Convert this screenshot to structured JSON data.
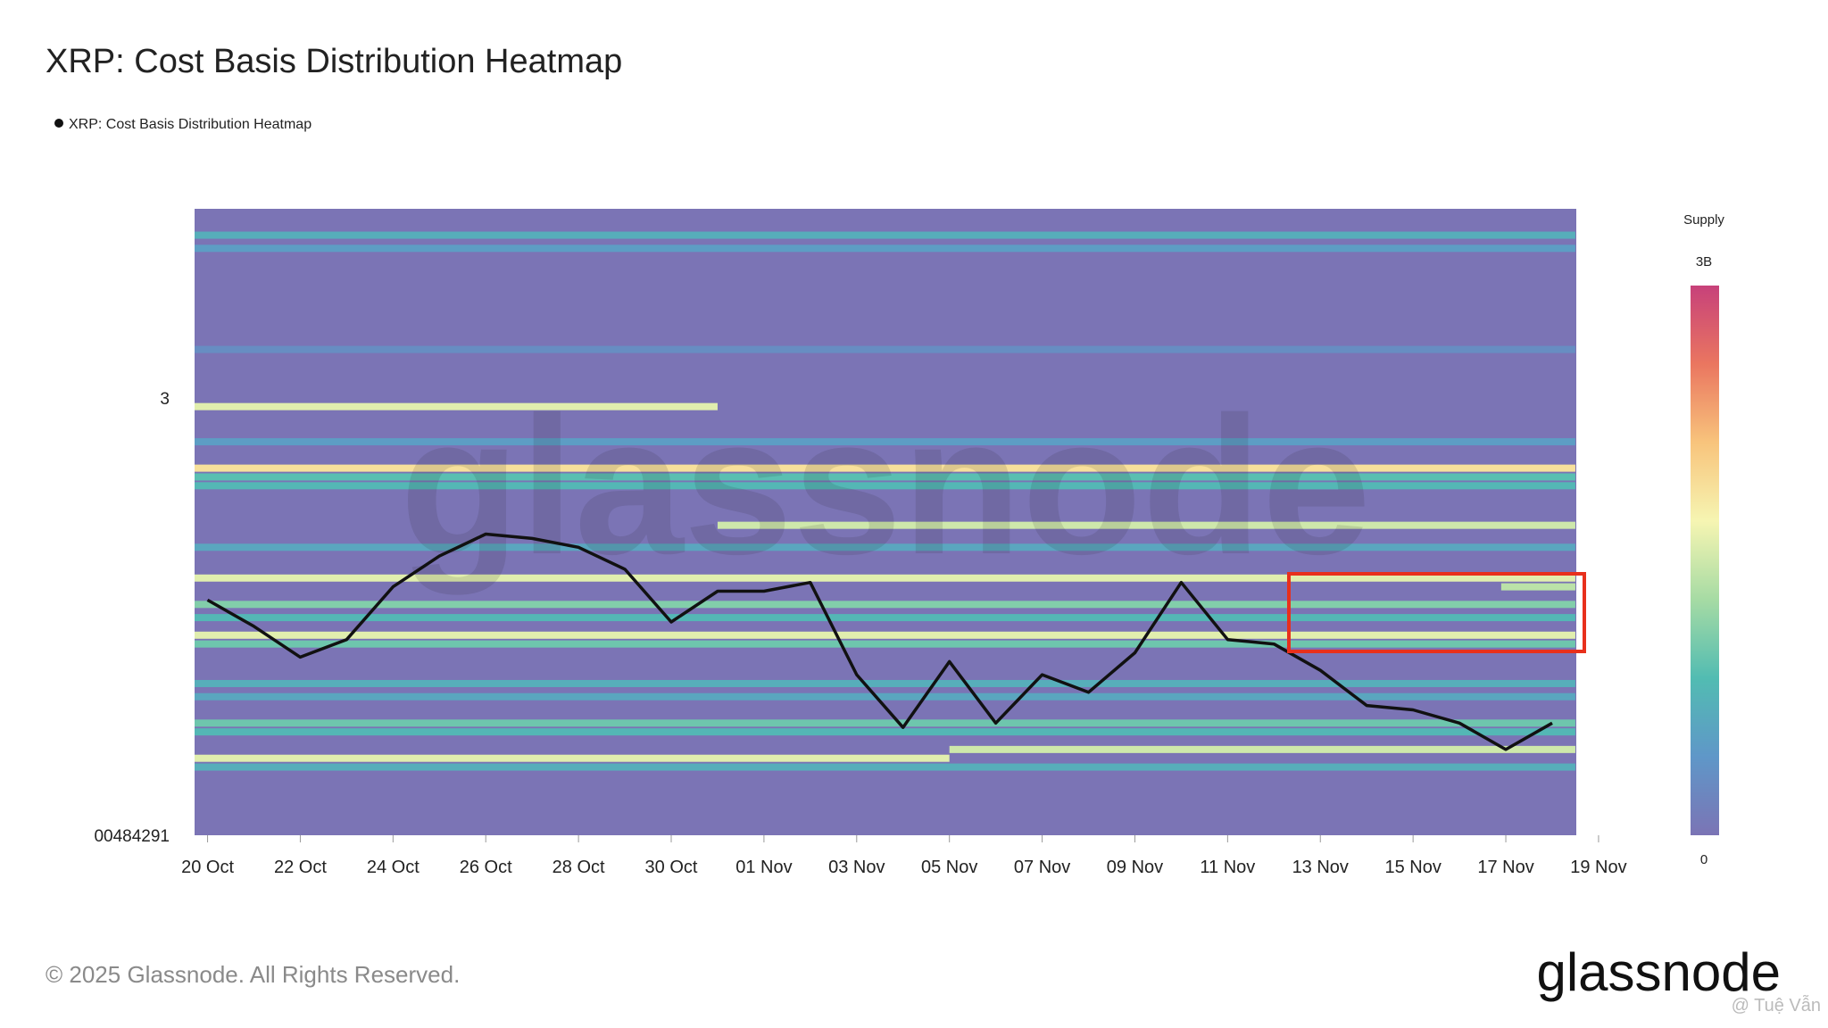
{
  "chart_data": {
    "type": "heatmap-line",
    "title": "XRP: Cost Basis Distribution Heatmap",
    "categories": [
      "20 Oct",
      null,
      "22 Oct",
      null,
      "24 Oct",
      null,
      "26 Oct",
      null,
      "28 Oct",
      null,
      "30 Oct",
      null,
      "01 Nov",
      null,
      "03 Nov",
      null,
      "05 Nov",
      null,
      "07 Nov",
      null,
      "09 Nov",
      null,
      "11 Nov",
      null,
      "13 Nov",
      null,
      "15 Nov",
      null,
      "17 Nov",
      null,
      "19 Nov"
    ],
    "series": [
      {
        "name": "XRP: Cost Basis Distribution Heatmap",
        "color": "#111111",
        "values": [
          2.54,
          2.48,
          2.41,
          2.45,
          2.57,
          2.64,
          2.69,
          2.68,
          2.66,
          2.61,
          2.49,
          2.56,
          2.56,
          2.58,
          2.37,
          2.25,
          2.4,
          2.26,
          2.37,
          2.33,
          2.42,
          2.58,
          2.45,
          2.44,
          2.38,
          2.3,
          2.29,
          2.26,
          2.2,
          2.26,
          null
        ]
      }
    ],
    "ylim": [
      2.00484291,
      3.43
    ],
    "yticks": [
      {
        "value": 2.00484291,
        "label": "00484291"
      },
      3
    ],
    "heatmap": {
      "colorbar_title": "Supply",
      "zlim": [
        0,
        3000000000
      ],
      "zticks": [
        0,
        {
          "value": 3000000000,
          "label": "3B"
        }
      ],
      "colorscale": [
        "#7b74b5",
        "#5f97c8",
        "#52bcb2",
        "#a6dba4",
        "#f6f5b2",
        "#f8c47c",
        "#ea7660",
        "#c7417a"
      ],
      "bands": [
        {
          "price": 3.37,
          "supply": 700000000,
          "span": [
            0,
            30
          ]
        },
        {
          "price": 3.34,
          "supply": 500000000,
          "span": [
            0,
            30
          ]
        },
        {
          "price": 3.11,
          "supply": 300000000,
          "span": [
            0,
            30
          ]
        },
        {
          "price": 2.98,
          "supply": 1600000000,
          "span": [
            0,
            11.5
          ]
        },
        {
          "price": 2.9,
          "supply": 500000000,
          "span": [
            0,
            30
          ]
        },
        {
          "price": 2.84,
          "supply": 1900000000,
          "span": [
            0,
            30
          ]
        },
        {
          "price": 2.82,
          "supply": 900000000,
          "span": [
            0,
            30
          ]
        },
        {
          "price": 2.8,
          "supply": 800000000,
          "span": [
            0,
            30
          ]
        },
        {
          "price": 2.71,
          "supply": 1500000000,
          "span": [
            11.5,
            30
          ]
        },
        {
          "price": 2.66,
          "supply": 600000000,
          "span": [
            0,
            30
          ]
        },
        {
          "price": 2.59,
          "supply": 1600000000,
          "span": [
            0,
            30
          ]
        },
        {
          "price": 2.57,
          "supply": 1400000000,
          "span": [
            28.4,
            30
          ]
        },
        {
          "price": 2.53,
          "supply": 1100000000,
          "span": [
            0,
            30
          ]
        },
        {
          "price": 2.5,
          "supply": 800000000,
          "span": [
            0,
            30
          ]
        },
        {
          "price": 2.46,
          "supply": 1600000000,
          "span": [
            0,
            30
          ]
        },
        {
          "price": 2.44,
          "supply": 1000000000,
          "span": [
            0,
            30
          ]
        },
        {
          "price": 2.35,
          "supply": 700000000,
          "span": [
            0,
            30
          ]
        },
        {
          "price": 2.32,
          "supply": 600000000,
          "span": [
            0,
            30
          ]
        },
        {
          "price": 2.26,
          "supply": 1000000000,
          "span": [
            0,
            30
          ]
        },
        {
          "price": 2.24,
          "supply": 800000000,
          "span": [
            0,
            30
          ]
        },
        {
          "price": 2.2,
          "supply": 1500000000,
          "span": [
            16.5,
            30
          ]
        },
        {
          "price": 2.18,
          "supply": 1600000000,
          "span": [
            0,
            16.5
          ]
        },
        {
          "price": 2.16,
          "supply": 700000000,
          "span": [
            0,
            30
          ]
        }
      ]
    },
    "watermark": "glassnode",
    "footer": "© 2025 Glassnode. All Rights Reserved.",
    "logo": "glassnode",
    "credit": "@ Tuệ Vẫn"
  }
}
